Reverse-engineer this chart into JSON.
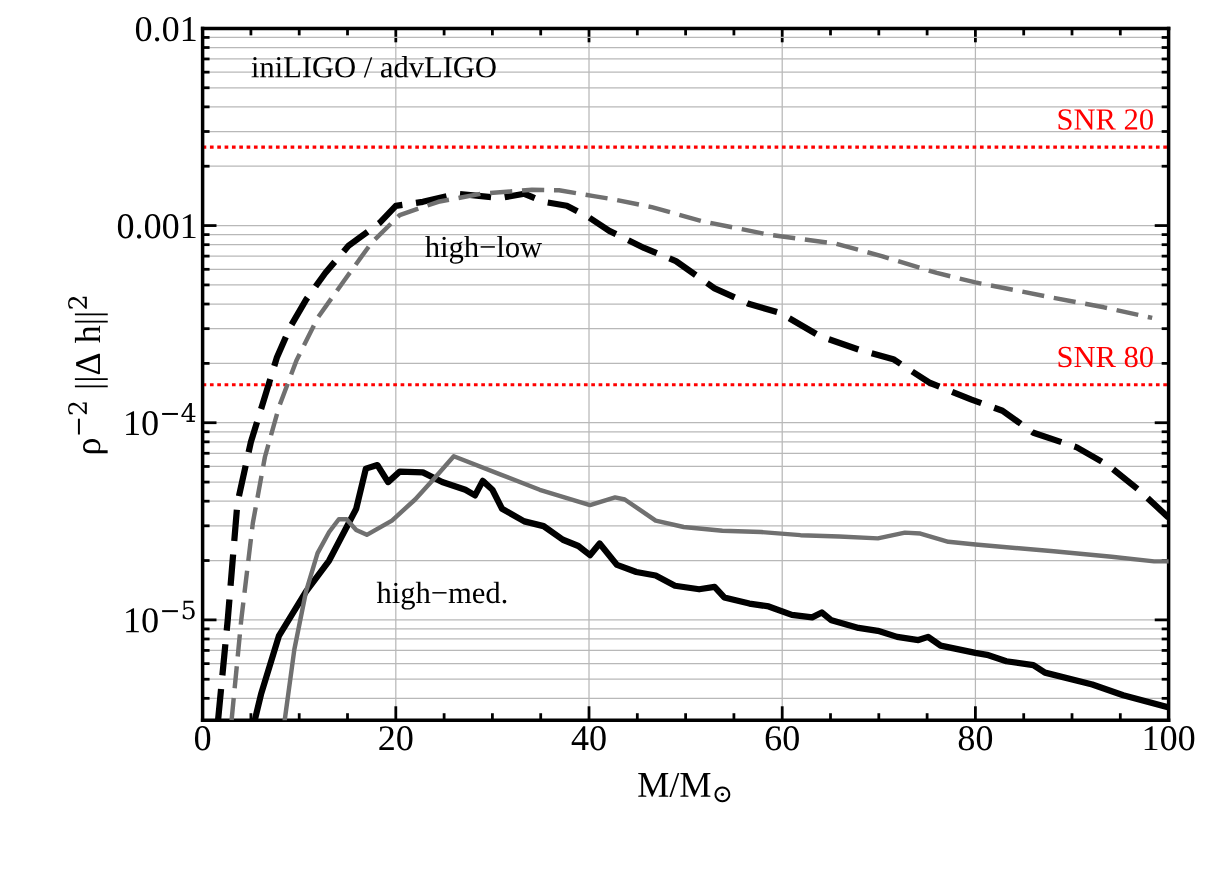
{
  "chart_data": {
    "type": "line",
    "xlabel": "M/M$_{⊙}$",
    "ylabel": "ρ$^{−2}$ ||Δ h||$^{2}$",
    "log": "y",
    "grid": true,
    "xlim": [
      0,
      100
    ],
    "xticks": [
      0,
      20,
      40,
      60,
      80,
      100
    ],
    "ylim": [
      3.1e-06,
      0.01
    ],
    "yticks": [
      {
        "value": 1e-05,
        "label": "10$^{−5}$"
      },
      {
        "value": 0.0001,
        "label": "10$^{−4}$"
      },
      {
        "value": 0.001,
        "label": "0.001"
      },
      {
        "value": 0.01,
        "label": "0.01"
      }
    ],
    "annotations": [
      "iniLIGO / advLIGO",
      "high−low",
      "high−med."
    ],
    "ref_lines": [
      {
        "axis": "y",
        "value": 0.0025,
        "label": "SNR 20",
        "color": "#ff0000",
        "line_style": "dotted"
      },
      {
        "axis": "y",
        "value": 0.000156,
        "label": "SNR 80",
        "color": "#ff0000",
        "line_style": "dotted"
      }
    ],
    "series": [
      {
        "color": "#000000",
        "line_style": "dashed",
        "x": [
          1.6,
          2.6,
          3.6,
          5.0,
          6.25,
          7.7,
          9.1,
          10.7,
          12.7,
          15.1,
          18.3,
          20,
          22.8,
          26.4,
          30.8,
          33.3,
          35.3,
          37.7,
          40,
          42.1,
          45.7,
          49,
          53,
          56.6,
          59.8,
          63.9,
          67.9,
          71.5,
          75.2,
          79.6,
          82.8,
          86,
          90.5,
          93.7,
          96.9,
          100
        ],
        "values": [
          3.1e-06,
          1e-05,
          3.9e-05,
          8e-05,
          0.000126,
          0.000215,
          0.000308,
          0.00042,
          0.000575,
          0.00079,
          0.00103,
          0.00126,
          0.00132,
          0.00145,
          0.00138,
          0.00145,
          0.00132,
          0.00126,
          0.0011,
          0.00094,
          0.00077,
          0.00066,
          0.00048,
          0.0004,
          0.00036,
          0.000275,
          0.000235,
          0.00021,
          0.00016,
          0.000131,
          0.000115,
          8.9e-05,
          7.5e-05,
          6.1e-05,
          4.57e-05,
          3.3e-05
        ]
      },
      {
        "color": "#707070",
        "line_style": "dashed",
        "x": [
          3.0,
          4.0,
          5.2,
          6.45,
          7.9,
          9.7,
          11.9,
          14.7,
          17.5,
          20.4,
          24.4,
          28.8,
          34.1,
          36.9,
          40.5,
          42.5,
          46.5,
          51.8,
          58.6,
          65.5,
          70.3,
          76,
          80,
          88.1,
          93.3,
          98.3
        ],
        "values": [
          3.1e-06,
          1e-05,
          3.1e-05,
          6.7e-05,
          0.00012,
          0.000206,
          0.00034,
          0.00053,
          0.00082,
          0.00113,
          0.00132,
          0.00145,
          0.00152,
          0.00151,
          0.00141,
          0.00136,
          0.00124,
          0.00105,
          0.0009,
          0.00081,
          0.0007,
          0.000575,
          0.000515,
          0.00043,
          0.000385,
          0.00034
        ]
      },
      {
        "color": "#000000",
        "line_style": "solid",
        "x": [
          5.4,
          6.05,
          7.9,
          10.7,
          13.1,
          15.9,
          16.9,
          18.1,
          19.2,
          20.4,
          22.8,
          24.8,
          27.2,
          28.2,
          29,
          30,
          31,
          33.3,
          35.3,
          37.3,
          38.9,
          40.1,
          41.1,
          42.9,
          44.9,
          46.9,
          48.9,
          51.4,
          53,
          54,
          56.6,
          58.6,
          61,
          63.1,
          64.1,
          65.1,
          67.9,
          69.9,
          71.9,
          74.1,
          75.1,
          76.4,
          80,
          81.2,
          83.2,
          86,
          87.2,
          92.1,
          95.3,
          100
        ],
        "values": [
          3.1e-06,
          4.2e-06,
          8.3e-06,
          1.39e-05,
          2e-05,
          3.66e-05,
          5.85e-05,
          6.1e-05,
          5e-05,
          5.65e-05,
          5.6e-05,
          5e-05,
          4.57e-05,
          4.28e-05,
          5.07e-05,
          4.57e-05,
          3.66e-05,
          3.16e-05,
          2.99e-05,
          2.55e-05,
          2.37e-05,
          2.13e-05,
          2.44e-05,
          1.9e-05,
          1.75e-05,
          1.68e-05,
          1.49e-05,
          1.43e-05,
          1.47e-05,
          1.3e-05,
          1.21e-05,
          1.17e-05,
          1.06e-05,
          1.03e-05,
          1.09e-05,
          9.95e-06,
          9.1e-06,
          8.8e-06,
          8.2e-06,
          7.9e-06,
          8.2e-06,
          7.4e-06,
          6.8e-06,
          6.65e-06,
          6.17e-06,
          5.9e-06,
          5.4e-06,
          4.7e-06,
          4.15e-06,
          3.6e-06
        ]
      },
      {
        "color": "#707070",
        "line_style": "solid",
        "x": [
          8.5,
          9.5,
          10.7,
          11.9,
          13.1,
          14.1,
          14.9,
          15.9,
          17.0,
          19.6,
          22,
          24,
          26,
          30.8,
          34.9,
          40.1,
          42.7,
          43.7,
          46.9,
          49.8,
          53.8,
          57.8,
          61.9,
          65.9,
          69.9,
          72.7,
          74.3,
          77.2,
          80,
          88.1,
          94.1,
          98.5,
          100
        ],
        "values": [
          3.1e-06,
          7.1e-06,
          1.39e-05,
          2.18e-05,
          2.79e-05,
          3.24e-05,
          3.24e-05,
          2.86e-05,
          2.7e-05,
          3.19e-05,
          4.08e-05,
          5.23e-05,
          6.76e-05,
          5.47e-05,
          4.57e-05,
          3.82e-05,
          4.18e-05,
          4.08e-05,
          3.19e-05,
          2.96e-05,
          2.83e-05,
          2.79e-05,
          2.69e-05,
          2.65e-05,
          2.59e-05,
          2.77e-05,
          2.74e-05,
          2.49e-05,
          2.41e-05,
          2.23e-05,
          2.09e-05,
          1.98e-05,
          1.98e-05
        ]
      }
    ]
  }
}
